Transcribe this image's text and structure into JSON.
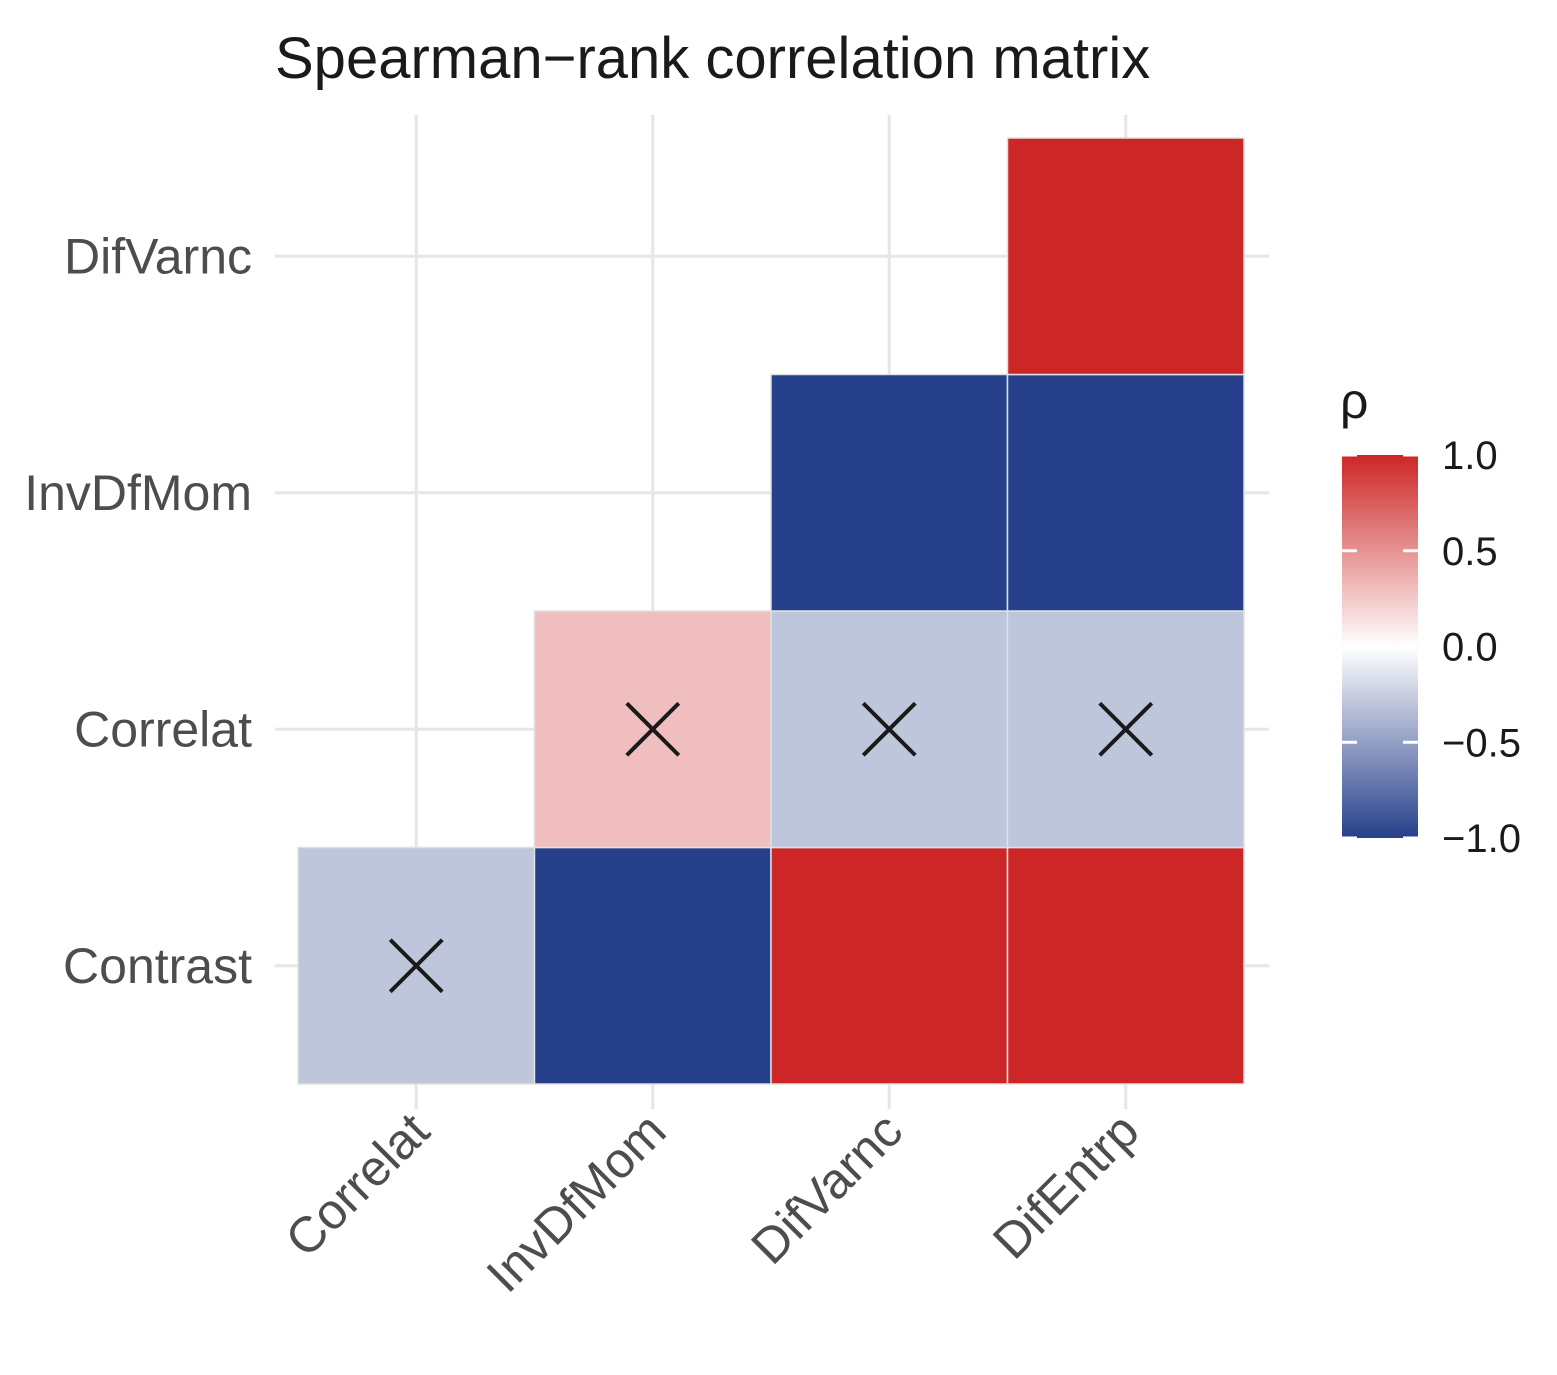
{
  "chart_data": {
    "type": "heatmap",
    "title": "Spearman−rank correlation matrix",
    "x_categories": [
      "Correlat",
      "InvDfMom",
      "DifVarnc",
      "DifEntrp"
    ],
    "y_categories": [
      "Contrast",
      "Correlat",
      "InvDfMom",
      "DifVarnc"
    ],
    "cells": [
      {
        "x": "Correlat",
        "y": "Contrast",
        "value": -0.3,
        "significant": false
      },
      {
        "x": "InvDfMom",
        "y": "Contrast",
        "value": -1.0,
        "significant": true
      },
      {
        "x": "DifVarnc",
        "y": "Contrast",
        "value": 1.0,
        "significant": true
      },
      {
        "x": "DifEntrp",
        "y": "Contrast",
        "value": 1.0,
        "significant": true
      },
      {
        "x": "InvDfMom",
        "y": "Correlat",
        "value": 0.3,
        "significant": false
      },
      {
        "x": "DifVarnc",
        "y": "Correlat",
        "value": -0.3,
        "significant": false
      },
      {
        "x": "DifEntrp",
        "y": "Correlat",
        "value": -0.3,
        "significant": false
      },
      {
        "x": "DifVarnc",
        "y": "InvDfMom",
        "value": -1.0,
        "significant": true
      },
      {
        "x": "DifEntrp",
        "y": "InvDfMom",
        "value": -1.0,
        "significant": true
      },
      {
        "x": "DifEntrp",
        "y": "DifVarnc",
        "value": 1.0,
        "significant": true
      }
    ],
    "insignificant_marker": "×",
    "legend": {
      "title": "ρ",
      "min": -1.0,
      "max": 1.0,
      "ticks": [
        1.0,
        0.5,
        0.0,
        -0.5,
        -1.0
      ],
      "tick_labels": [
        "1.0",
        "0.5",
        "0.0",
        "−0.5",
        "−1.0"
      ],
      "position": "right"
    },
    "colors": {
      "low": "#27408b",
      "mid": "#ffffff",
      "high": "#cd2626"
    },
    "grid": true
  }
}
